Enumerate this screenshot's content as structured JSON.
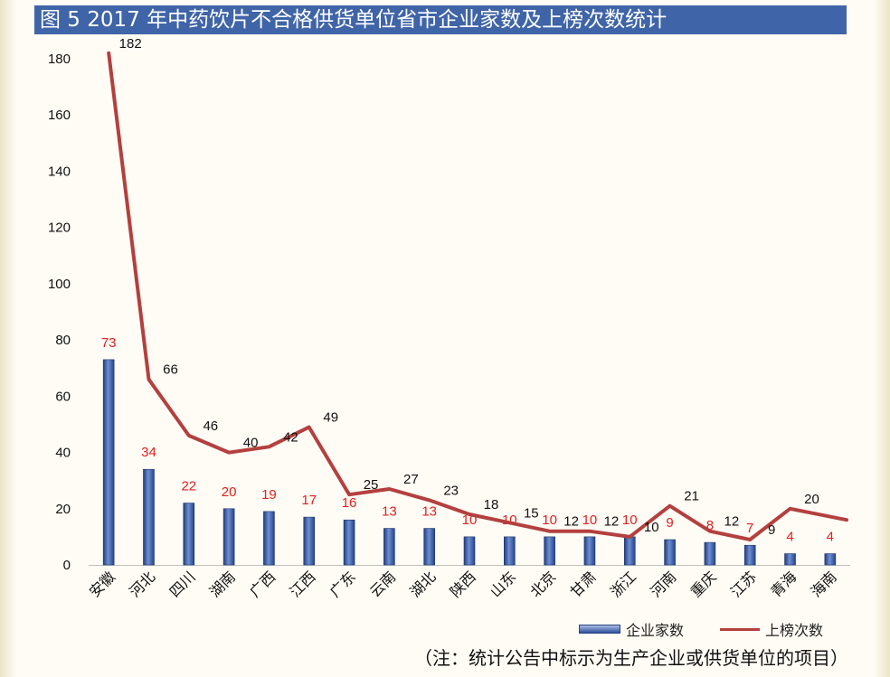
{
  "title": "图 5  2017 年中药饮片不合格供货单位省市企业家数及上榜次数统计",
  "footnote": "（注：统计公告中标示为生产企业或供货单位的项目）",
  "colors": {
    "title_bg": "#3f64a8",
    "bar": "#34539e",
    "line": "#b3403f",
    "bar_label": "#e02020",
    "line_label": "#111111"
  },
  "chart_data": {
    "type": "bar",
    "categories": [
      "安徽",
      "河北",
      "四川",
      "湖南",
      "广西",
      "江西",
      "广东",
      "云南",
      "湖北",
      "陕西",
      "山东",
      "北京",
      "甘肃",
      "浙江",
      "河南",
      "重庆",
      "江苏",
      "青海",
      "海南"
    ],
    "series": [
      {
        "name": "企业家数",
        "type": "bar",
        "values": [
          73,
          34,
          22,
          20,
          19,
          17,
          16,
          13,
          13,
          10,
          10,
          10,
          10,
          10,
          9,
          8,
          7,
          4,
          4
        ]
      },
      {
        "name": "上榜次数",
        "type": "line",
        "values": [
          182,
          66,
          46,
          40,
          42,
          49,
          25,
          27,
          23,
          18,
          15,
          12,
          12,
          10,
          21,
          12,
          9,
          20,
          16
        ],
        "labels": [
          "182",
          "66",
          "46",
          "40",
          "42",
          "49",
          "25",
          "27",
          "23",
          "18",
          "15",
          "12",
          "12",
          "10",
          "21",
          "12",
          "9",
          "20",
          ""
        ]
      }
    ],
    "ylim": [
      0,
      180
    ],
    "yticks": [
      0,
      20,
      40,
      60,
      80,
      100,
      120,
      140,
      160,
      180
    ],
    "grid": false,
    "legend_position": "bottom-right"
  }
}
